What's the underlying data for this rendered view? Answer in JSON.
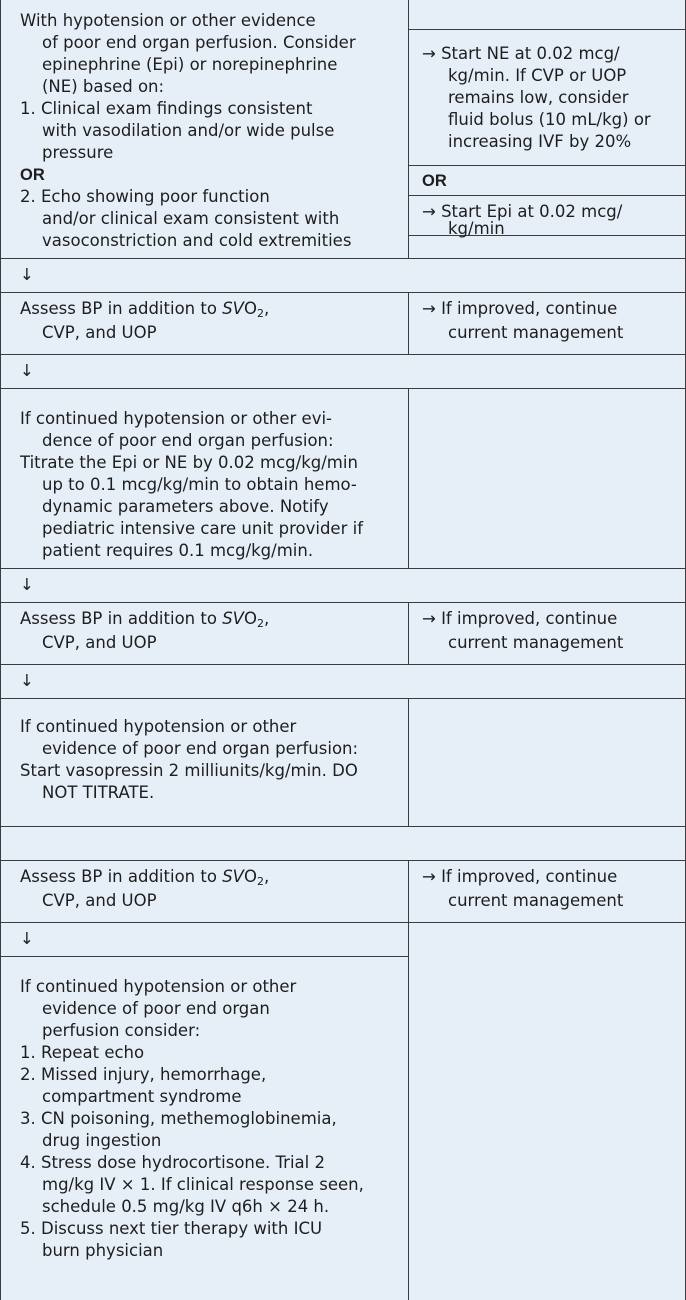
{
  "block1": {
    "left": {
      "l1": "With hypotension or other evidence",
      "l2": "of poor end organ perfusion. Consider",
      "l3": "epinephrine (Epi) or norepinephrine",
      "l4": "(NE) based on:",
      "l5": "1. Clinical exam findings consistent",
      "l6": "with vasodilation and/or wide pulse",
      "l7": "pressure",
      "or": "OR",
      "l8": "2. Echo showing poor function",
      "l9": "and/or clinical exam consistent with",
      "l10": "vasoconstriction and cold extremities"
    },
    "right": {
      "ne1": "→ Start NE at 0.02 mcg/",
      "ne2": "kg/min. If CVP or UOP",
      "ne3": "remains low, consider",
      "ne4": "fluid bolus (10 mL/kg) or",
      "ne5": "increasing IVF by 20%",
      "or": "OR",
      "epi1": "→ Start Epi at 0.02 mcg/",
      "epi2": "kg/min"
    }
  },
  "arrow": "↓",
  "assess": {
    "a": "Assess BP in addition to ",
    "svo": "SV",
    "o2": "O",
    "sub": "2",
    "comma": ",",
    "l2": "CVP, and UOP",
    "r1": "→ If improved, continue",
    "r2": "current management"
  },
  "block2": {
    "l1": "If continued hypotension or other evi-",
    "l2": "dence of poor end organ perfusion:",
    "l3": "Titrate the Epi or NE by 0.02 mcg/kg/min",
    "l4": "up to 0.1 mcg/kg/min to obtain hemo-",
    "l5": "dynamic parameters above. Notify",
    "l6": "pediatric intensive care unit provider if",
    "l7": "patient requires 0.1 mcg/kg/min."
  },
  "block3": {
    "l1": "If continued hypotension or other",
    "l2": "evidence of poor end organ perfusion:",
    "l3": "Start vasopressin 2 milliunits/kg/min. DO",
    "l4": "NOT TITRATE."
  },
  "block4": {
    "l1": "If continued hypotension or other",
    "l2": "evidence of poor end organ",
    "l3": "perfusion consider:",
    "i1": "1. Repeat echo",
    "i2a": "2. Missed injury, hemorrhage,",
    "i2b": "compartment syndrome",
    "i3a": "3. CN poisoning, methemoglobinemia,",
    "i3b": "drug ingestion",
    "i4a": "4. Stress dose hydrocortisone. Trial 2",
    "i4b": "mg/kg IV × 1. If clinical response seen,",
    "i4c": "schedule 0.5 mg/kg IV q6h × 24 h.",
    "i5a": "5. Discuss next tier therapy with ICU",
    "i5b": "burn physician"
  },
  "colors": {
    "cell_bg": "#e6eff8",
    "line": "#3c3c3c"
  }
}
